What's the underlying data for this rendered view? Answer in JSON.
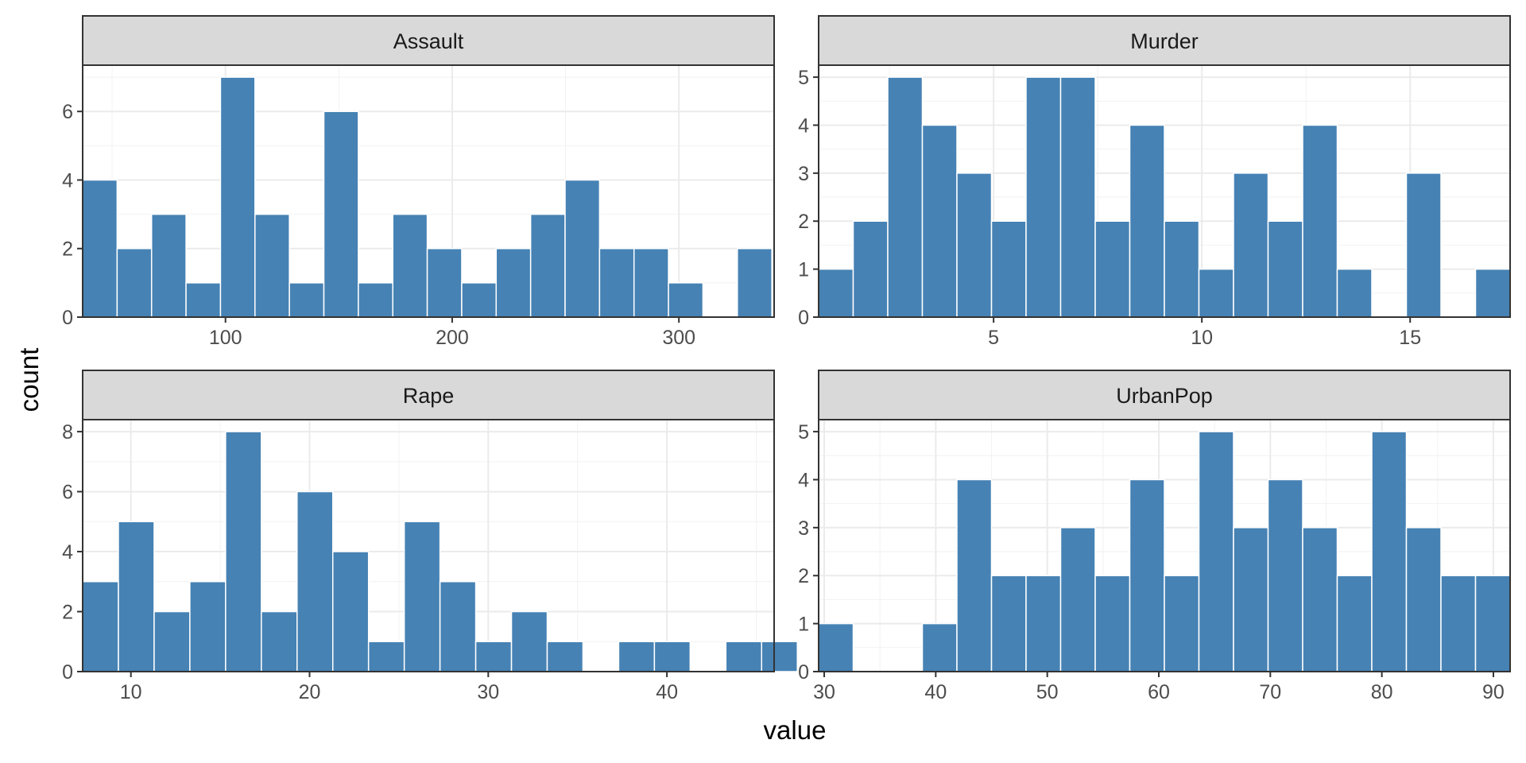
{
  "chart_data": {
    "type": "histogram",
    "layout": "facet_wrap 2x2, free scales",
    "xlabel": "value",
    "ylabel": "count",
    "bar_fill": "#4682B4",
    "bar_outline": "#FFFFFF",
    "strip_fill": "#D9D9D9",
    "grid": true,
    "panels": [
      {
        "title": "Assault",
        "xlim": [
          37,
          342
        ],
        "ylim": [
          0,
          7.35
        ],
        "x_ticks": [
          100,
          200,
          300
        ],
        "y_ticks": [
          0,
          2,
          4,
          6
        ],
        "binwidth": 15.2,
        "bins": [
          {
            "x0": 37.0,
            "count": 4
          },
          {
            "x0": 52.2,
            "count": 2
          },
          {
            "x0": 67.4,
            "count": 3
          },
          {
            "x0": 82.6,
            "count": 1
          },
          {
            "x0": 97.8,
            "count": 7
          },
          {
            "x0": 113.0,
            "count": 3
          },
          {
            "x0": 128.2,
            "count": 1
          },
          {
            "x0": 143.4,
            "count": 6
          },
          {
            "x0": 158.6,
            "count": 1
          },
          {
            "x0": 173.8,
            "count": 3
          },
          {
            "x0": 189.0,
            "count": 2
          },
          {
            "x0": 204.2,
            "count": 1
          },
          {
            "x0": 219.4,
            "count": 2
          },
          {
            "x0": 234.6,
            "count": 3
          },
          {
            "x0": 249.8,
            "count": 4
          },
          {
            "x0": 265.0,
            "count": 2
          },
          {
            "x0": 280.2,
            "count": 2
          },
          {
            "x0": 295.4,
            "count": 1
          },
          {
            "x0": 310.6,
            "count": 0
          },
          {
            "x0": 325.8,
            "count": 2
          }
        ]
      },
      {
        "title": "Murder",
        "xlim": [
          0.8,
          17.4
        ],
        "ylim": [
          0,
          5.25
        ],
        "x_ticks": [
          5,
          10,
          15
        ],
        "y_ticks": [
          0,
          1,
          2,
          3,
          4,
          5
        ],
        "binwidth": 0.83,
        "bins": [
          {
            "x0": 0.8,
            "count": 1
          },
          {
            "x0": 1.63,
            "count": 2
          },
          {
            "x0": 2.46,
            "count": 5
          },
          {
            "x0": 3.29,
            "count": 4
          },
          {
            "x0": 4.12,
            "count": 3
          },
          {
            "x0": 4.95,
            "count": 2
          },
          {
            "x0": 5.78,
            "count": 5
          },
          {
            "x0": 6.61,
            "count": 5
          },
          {
            "x0": 7.44,
            "count": 2
          },
          {
            "x0": 8.27,
            "count": 4
          },
          {
            "x0": 9.1,
            "count": 2
          },
          {
            "x0": 9.93,
            "count": 1
          },
          {
            "x0": 10.76,
            "count": 3
          },
          {
            "x0": 11.59,
            "count": 2
          },
          {
            "x0": 12.42,
            "count": 4
          },
          {
            "x0": 13.25,
            "count": 1
          },
          {
            "x0": 14.08,
            "count": 0
          },
          {
            "x0": 14.91,
            "count": 3
          },
          {
            "x0": 15.74,
            "count": 0
          },
          {
            "x0": 16.57,
            "count": 1
          }
        ]
      },
      {
        "title": "Rape",
        "xlim": [
          7.3,
          46.0
        ],
        "ylim": [
          0,
          8.4
        ],
        "x_ticks": [
          10,
          20,
          30,
          40
        ],
        "y_ticks": [
          0,
          2,
          4,
          6,
          8
        ],
        "binwidth": 2.0,
        "bins": [
          {
            "x0": 7.3,
            "count": 3
          },
          {
            "x0": 9.3,
            "count": 5
          },
          {
            "x0": 11.3,
            "count": 2
          },
          {
            "x0": 13.3,
            "count": 3
          },
          {
            "x0": 15.3,
            "count": 8
          },
          {
            "x0": 17.3,
            "count": 2
          },
          {
            "x0": 19.3,
            "count": 6
          },
          {
            "x0": 21.3,
            "count": 4
          },
          {
            "x0": 23.3,
            "count": 1
          },
          {
            "x0": 25.3,
            "count": 5
          },
          {
            "x0": 27.3,
            "count": 3
          },
          {
            "x0": 29.3,
            "count": 1
          },
          {
            "x0": 31.3,
            "count": 2
          },
          {
            "x0": 33.3,
            "count": 1
          },
          {
            "x0": 35.3,
            "count": 0
          },
          {
            "x0": 37.3,
            "count": 1
          },
          {
            "x0": 39.3,
            "count": 1
          },
          {
            "x0": 41.3,
            "count": 0
          },
          {
            "x0": 43.3,
            "count": 1
          },
          {
            "x0": 45.3,
            "count": 1
          }
        ]
      },
      {
        "title": "UrbanPop",
        "xlim": [
          29.5,
          91.5
        ],
        "ylim": [
          0,
          5.25
        ],
        "x_ticks": [
          30,
          40,
          50,
          60,
          70,
          80,
          90
        ],
        "y_ticks": [
          0,
          1,
          2,
          3,
          4,
          5
        ],
        "binwidth": 3.1,
        "bins": [
          {
            "x0": 29.5,
            "count": 1
          },
          {
            "x0": 32.6,
            "count": 0
          },
          {
            "x0": 35.7,
            "count": 0
          },
          {
            "x0": 38.8,
            "count": 1
          },
          {
            "x0": 41.9,
            "count": 4
          },
          {
            "x0": 45.0,
            "count": 2
          },
          {
            "x0": 48.1,
            "count": 2
          },
          {
            "x0": 51.2,
            "count": 3
          },
          {
            "x0": 54.3,
            "count": 2
          },
          {
            "x0": 57.4,
            "count": 4
          },
          {
            "x0": 60.5,
            "count": 2
          },
          {
            "x0": 63.6,
            "count": 5
          },
          {
            "x0": 66.7,
            "count": 3
          },
          {
            "x0": 69.8,
            "count": 4
          },
          {
            "x0": 72.9,
            "count": 3
          },
          {
            "x0": 76.0,
            "count": 2
          },
          {
            "x0": 79.1,
            "count": 5
          },
          {
            "x0": 82.2,
            "count": 3
          },
          {
            "x0": 85.3,
            "count": 2
          },
          {
            "x0": 88.4,
            "count": 2
          }
        ]
      }
    ]
  }
}
